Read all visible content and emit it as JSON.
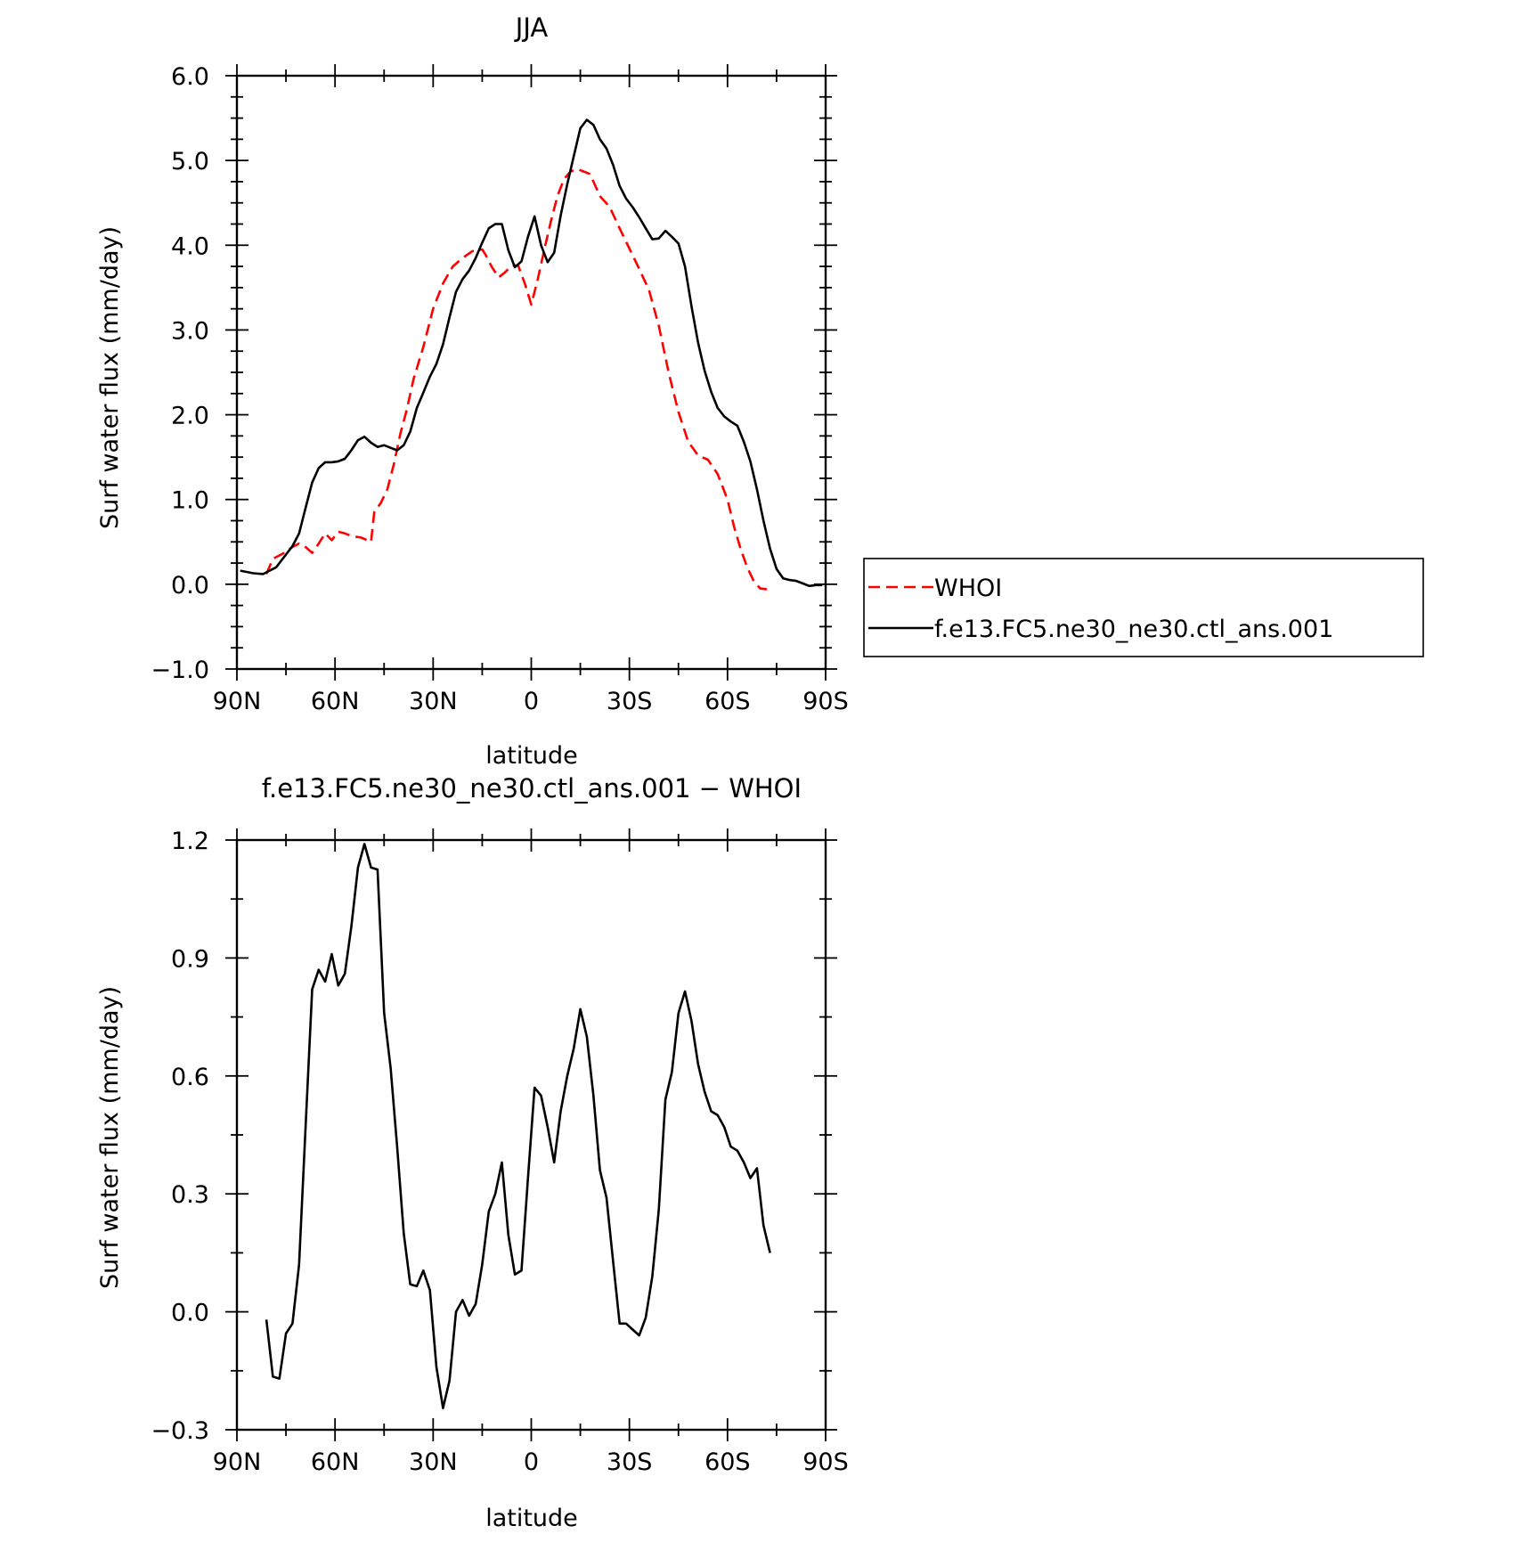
{
  "chart_data": [
    {
      "type": "line",
      "title": "JJA",
      "xlabel": "latitude",
      "ylabel": "Surf water flux (mm/day)",
      "xlim": [
        90,
        -90
      ],
      "ylim": [
        -1.0,
        6.0
      ],
      "x_ticks": [
        90,
        60,
        30,
        0,
        -30,
        -60,
        -90
      ],
      "x_tick_labels": [
        "90N",
        "60N",
        "30N",
        "0",
        "30S",
        "60S",
        "90S"
      ],
      "y_ticks": [
        -1.0,
        0.0,
        1.0,
        2.0,
        3.0,
        4.0,
        5.0,
        6.0
      ],
      "y_tick_labels": [
        "−1.0",
        "0.0",
        "1.0",
        "2.0",
        "3.0",
        "4.0",
        "5.0",
        "6.0"
      ],
      "grid": false,
      "legend_position": "right",
      "series": [
        {
          "name": "WHOI",
          "color": "#ff0000",
          "dash": "dashed",
          "x": [
            81,
            79,
            76,
            73,
            71,
            69,
            67,
            65,
            63,
            61,
            59,
            57,
            55,
            52,
            49,
            48,
            46,
            44,
            42,
            40,
            38,
            36,
            33,
            30,
            27,
            24,
            21,
            18,
            15,
            14,
            12,
            10,
            8,
            6,
            4,
            2,
            0,
            -2,
            -4,
            -6,
            -8,
            -10,
            -12,
            -14,
            -16,
            -18,
            -19,
            -21,
            -24,
            -27,
            -30,
            -33,
            -36,
            -39,
            -42,
            -45,
            -48,
            -51,
            -54,
            -57,
            -60,
            -62,
            -64,
            -66,
            -68,
            -70,
            -72
          ],
          "y": [
            0.12,
            0.3,
            0.36,
            0.44,
            0.48,
            0.44,
            0.37,
            0.48,
            0.6,
            0.52,
            0.62,
            0.6,
            0.57,
            0.55,
            0.5,
            0.85,
            0.96,
            1.12,
            1.42,
            1.78,
            2.07,
            2.42,
            2.8,
            3.25,
            3.55,
            3.75,
            3.85,
            3.93,
            3.95,
            3.89,
            3.74,
            3.62,
            3.68,
            3.76,
            3.76,
            3.55,
            3.3,
            3.6,
            3.95,
            4.28,
            4.58,
            4.78,
            4.87,
            4.9,
            4.87,
            4.84,
            4.75,
            4.58,
            4.45,
            4.2,
            3.96,
            3.72,
            3.47,
            3.05,
            2.5,
            2.03,
            1.68,
            1.52,
            1.47,
            1.3,
            1.0,
            0.68,
            0.42,
            0.2,
            0.04,
            -0.05,
            -0.06
          ]
        },
        {
          "name": "f.e13.FC5.ne30_ne30.ctl_ans.001",
          "color": "#000000",
          "dash": "solid",
          "x": [
            89,
            85,
            82,
            80,
            78,
            76,
            73,
            71,
            69,
            67,
            65,
            63,
            61,
            59,
            57,
            55,
            53,
            51,
            49,
            47,
            45,
            43,
            41,
            39,
            37,
            35,
            33,
            31,
            29,
            27,
            25,
            23,
            21,
            19,
            17,
            15,
            13,
            11,
            9,
            7,
            5,
            3,
            1,
            -1,
            -3,
            -5,
            -7,
            -9,
            -11,
            -13,
            -15,
            -17,
            -19,
            -21,
            -23,
            -25,
            -27,
            -29,
            -31,
            -33,
            -35,
            -37,
            -39,
            -41,
            -43,
            -45,
            -47,
            -49,
            -51,
            -53,
            -55,
            -57,
            -59,
            -61,
            -63,
            -65,
            -67,
            -69,
            -71,
            -73,
            -75,
            -77,
            -79,
            -81,
            -83,
            -85,
            -87,
            -89
          ],
          "y": [
            0.16,
            0.13,
            0.12,
            0.16,
            0.2,
            0.3,
            0.45,
            0.6,
            0.9,
            1.2,
            1.37,
            1.44,
            1.44,
            1.45,
            1.48,
            1.58,
            1.7,
            1.74,
            1.67,
            1.62,
            1.64,
            1.61,
            1.58,
            1.64,
            1.8,
            2.08,
            2.26,
            2.45,
            2.6,
            2.83,
            3.15,
            3.45,
            3.6,
            3.7,
            3.85,
            4.03,
            4.2,
            4.25,
            4.25,
            3.94,
            3.74,
            3.81,
            4.1,
            4.34,
            4.0,
            3.8,
            3.91,
            4.35,
            4.72,
            5.05,
            5.38,
            5.48,
            5.42,
            5.25,
            5.14,
            4.95,
            4.7,
            4.55,
            4.45,
            4.33,
            4.2,
            4.07,
            4.08,
            4.17,
            4.1,
            4.02,
            3.75,
            3.28,
            2.85,
            2.52,
            2.27,
            2.08,
            1.98,
            1.92,
            1.87,
            1.68,
            1.45,
            1.12,
            0.75,
            0.42,
            0.18,
            0.07,
            0.05,
            0.04,
            0.01,
            -0.02,
            -0.01,
            -0.01
          ]
        }
      ]
    },
    {
      "type": "line",
      "title": "f.e13.FC5.ne30_ne30.ctl_ans.001 − WHOI",
      "xlabel": "latitude",
      "ylabel": "Surf water flux (mm/day)",
      "xlim": [
        90,
        -90
      ],
      "ylim": [
        -0.3,
        1.2
      ],
      "x_ticks": [
        90,
        60,
        30,
        0,
        -30,
        -60,
        -90
      ],
      "x_tick_labels": [
        "90N",
        "60N",
        "30N",
        "0",
        "30S",
        "60S",
        "90S"
      ],
      "y_ticks": [
        -0.3,
        0.0,
        0.3,
        0.6,
        0.9,
        1.2
      ],
      "y_tick_labels": [
        "−0.3",
        "0.0",
        "0.3",
        "0.6",
        "0.9",
        "1.2"
      ],
      "grid": false,
      "series": [
        {
          "name": "",
          "color": "#000000",
          "dash": "solid",
          "x": [
            81,
            79,
            77,
            75,
            73,
            71,
            69,
            67,
            65,
            63,
            61,
            59,
            57,
            55,
            53,
            51,
            49,
            47,
            45,
            43,
            41,
            39,
            37,
            35,
            33,
            31,
            29,
            27,
            25,
            23,
            21,
            19,
            17,
            15,
            13,
            11,
            9,
            7,
            5,
            3,
            1,
            -1,
            -3,
            -5,
            -7,
            -9,
            -11,
            -13,
            -15,
            -17,
            -19,
            -21,
            -23,
            -25,
            -27,
            -29,
            -31,
            -33,
            -35,
            -37,
            -39,
            -41,
            -43,
            -45,
            -47,
            -49,
            -51,
            -53,
            -55,
            -57,
            -59,
            -61,
            -63,
            -65,
            -67,
            -69,
            -71,
            -73
          ],
          "y": [
            -0.02,
            -0.165,
            -0.17,
            -0.055,
            -0.03,
            0.12,
            0.47,
            0.82,
            0.87,
            0.84,
            0.91,
            0.83,
            0.86,
            0.98,
            1.13,
            1.19,
            1.13,
            1.125,
            0.76,
            0.62,
            0.42,
            0.2,
            0.07,
            0.065,
            0.105,
            0.055,
            -0.14,
            -0.245,
            -0.175,
            0.0,
            0.03,
            -0.01,
            0.02,
            0.12,
            0.255,
            0.3,
            0.38,
            0.195,
            0.095,
            0.105,
            0.34,
            0.57,
            0.55,
            0.47,
            0.38,
            0.51,
            0.6,
            0.67,
            0.77,
            0.7,
            0.55,
            0.36,
            0.29,
            0.13,
            -0.03,
            -0.03,
            -0.045,
            -0.06,
            -0.015,
            0.09,
            0.26,
            0.54,
            0.61,
            0.76,
            0.815,
            0.74,
            0.63,
            0.56,
            0.51,
            0.5,
            0.47,
            0.42,
            0.41,
            0.38,
            0.34,
            0.365,
            0.22,
            0.15
          ]
        }
      ]
    }
  ]
}
